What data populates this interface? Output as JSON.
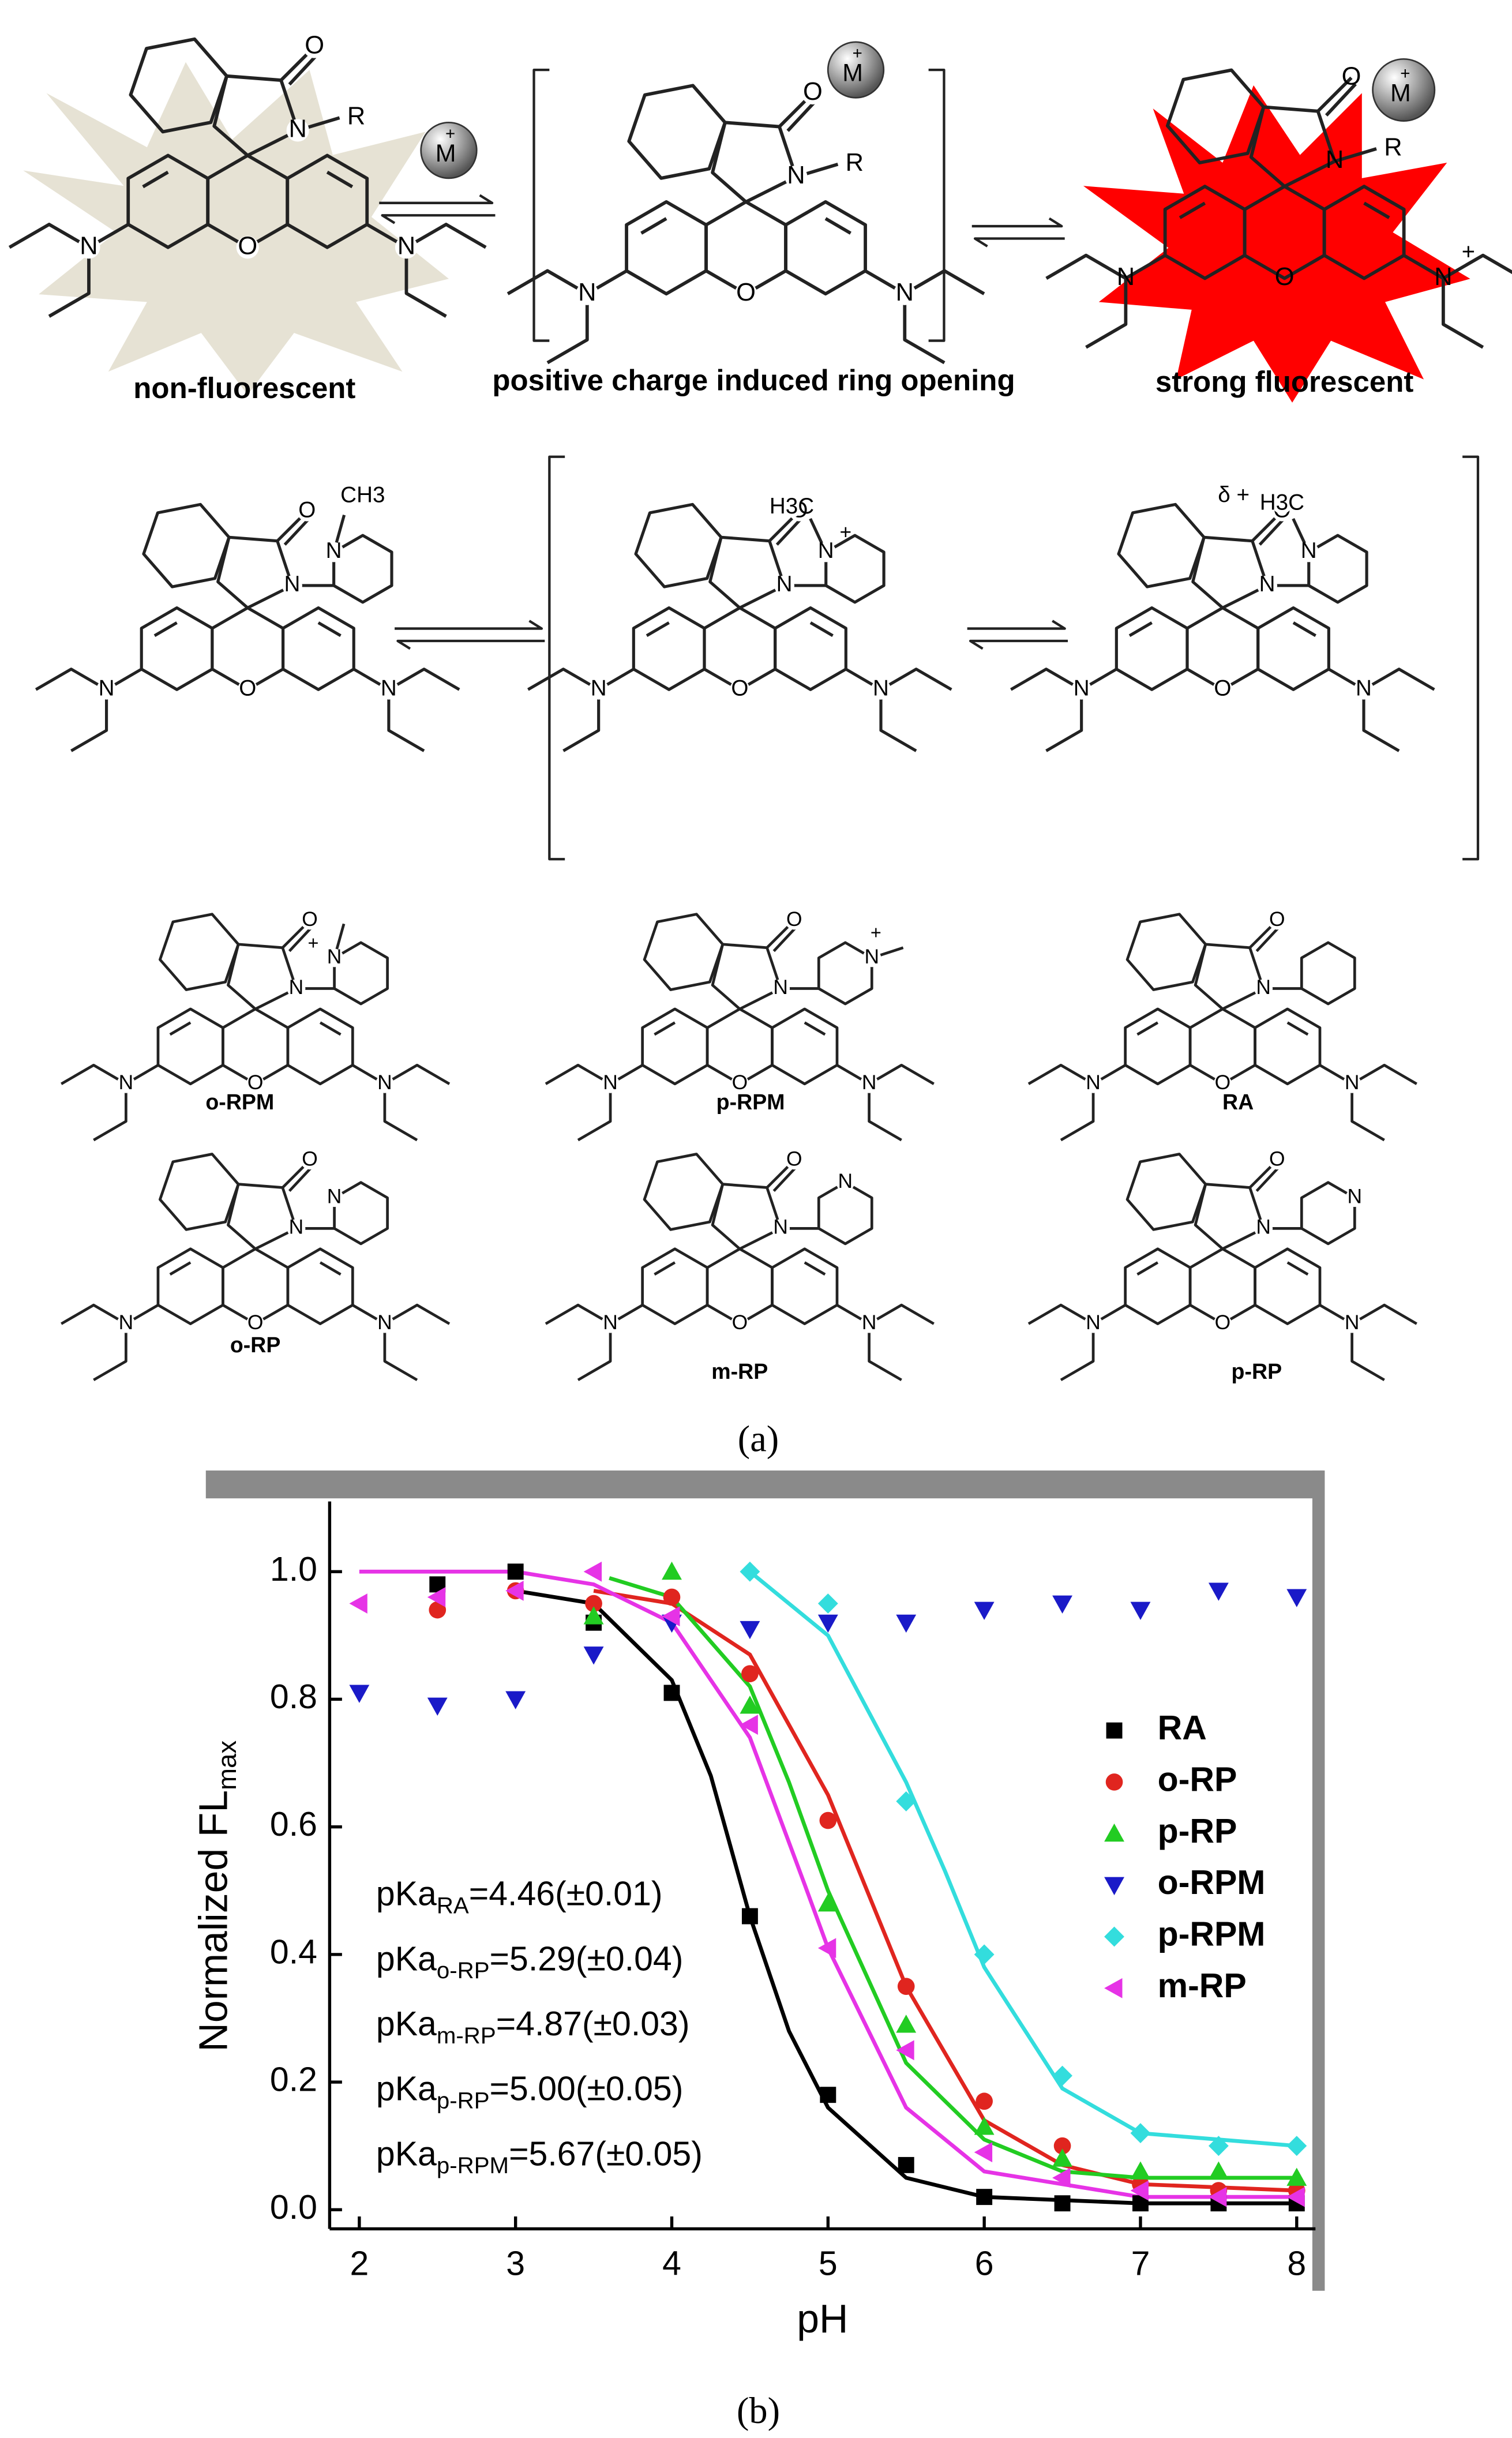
{
  "scheme": {
    "states": [
      "non-fluorescent",
      "positive charge induced ring opening",
      "strong fluorescent"
    ],
    "metal": {
      "symbol": "M",
      "charge": "+"
    },
    "molecules": [
      {
        "atoms": [
          "O",
          "N",
          "N",
          "N",
          "O"
        ],
        "extras": [
          "R"
        ]
      },
      {
        "atoms": [
          "O",
          "N",
          "N",
          "N",
          "O"
        ],
        "extras": [
          "R"
        ]
      },
      {
        "atoms": [
          "O",
          "N",
          "N",
          "N",
          "O"
        ],
        "extras": [
          "R",
          "+"
        ]
      },
      {
        "atoms": [
          "O",
          "N",
          "N",
          "N",
          "O"
        ],
        "extras": [
          "CH3",
          "N"
        ]
      },
      {
        "atoms": [
          "O",
          "N",
          "N",
          "N",
          "O"
        ],
        "extras": [
          "H3C",
          "N",
          "+"
        ]
      },
      {
        "atoms": [
          "O",
          "N",
          "N",
          "N",
          "O"
        ],
        "extras": [
          "δ +",
          "H3C",
          "N"
        ]
      },
      {
        "atoms": [
          "O",
          "N",
          "N",
          "N",
          "O"
        ],
        "extras": [
          "+",
          "N"
        ]
      },
      {
        "atoms": [
          "O",
          "N",
          "N",
          "N",
          "O"
        ],
        "extras": [
          "N",
          "+"
        ]
      },
      {
        "atoms": [
          "O",
          "N",
          "N",
          "N",
          "O"
        ],
        "extras": []
      },
      {
        "atoms": [
          "O",
          "N",
          "N",
          "N",
          "O"
        ],
        "extras": [
          "N"
        ]
      },
      {
        "atoms": [
          "O",
          "N",
          "N",
          "N",
          "O"
        ],
        "extras": [
          "N"
        ]
      },
      {
        "atoms": [
          "O",
          "N",
          "N",
          "N",
          "O"
        ],
        "extras": [
          "N"
        ]
      }
    ],
    "compounds": [
      "o-RPM",
      "p-RPM",
      "RA",
      "o-RP",
      "m-RP",
      "p-RP"
    ],
    "panel_label": "(a)"
  },
  "chart_data": {
    "type": "scatter",
    "panel_label": "(b)",
    "x_label": "pH",
    "y_label": {
      "text": "Normalized FL",
      "sub": "max"
    },
    "xlim": [
      1.81,
      8.12
    ],
    "ylim": [
      -0.03,
      1.11
    ],
    "xticks": [
      2,
      3,
      4,
      5,
      6,
      7,
      8
    ],
    "yticks": [
      {
        "value": 0,
        "label": "0.0"
      },
      {
        "value": 0.2,
        "label": "0.2"
      },
      {
        "value": 0.4,
        "label": "0.4"
      },
      {
        "value": 0.6,
        "label": "0.6"
      },
      {
        "value": 0.8,
        "label": "0.8"
      },
      {
        "value": 1,
        "label": "1.0"
      }
    ],
    "series": [
      {
        "name": "RA",
        "color": "#000000",
        "marker": "square",
        "x": [
          2.5,
          3,
          3.5,
          4,
          4.5,
          5,
          5.5,
          6,
          6.5,
          7,
          7.5,
          8
        ],
        "values": [
          0.98,
          1.0,
          0.92,
          0.81,
          0.46,
          0.18,
          0.07,
          0.02,
          0.01,
          0.01,
          0.01,
          0.01
        ]
      },
      {
        "name": "o-RP",
        "color": "#e0251f",
        "marker": "circle",
        "x": [
          2.5,
          3,
          3.5,
          4,
          4.5,
          5,
          5.5,
          6,
          6.5,
          7,
          7.5,
          8
        ],
        "values": [
          0.94,
          0.97,
          0.95,
          0.96,
          0.84,
          0.61,
          0.35,
          0.17,
          0.1,
          0.04,
          0.03,
          0.03
        ]
      },
      {
        "name": "p-RP",
        "color": "#22cc22",
        "marker": "triangle-up",
        "x": [
          3.5,
          4,
          4.5,
          5,
          5.5,
          6,
          6.5,
          7,
          7.5,
          8
        ],
        "values": [
          0.93,
          1.0,
          0.79,
          0.48,
          0.29,
          0.13,
          0.08,
          0.06,
          0.06,
          0.05
        ]
      },
      {
        "name": "o-RPM",
        "color": "#1a1ac8",
        "marker": "triangle-down",
        "x": [
          2,
          2.5,
          3,
          3.5,
          4,
          4.5,
          5,
          5.5,
          6,
          6.5,
          7,
          7.5,
          8
        ],
        "values": [
          0.81,
          0.79,
          0.8,
          0.87,
          0.92,
          0.91,
          0.92,
          0.92,
          0.94,
          0.95,
          0.94,
          0.97,
          0.96
        ]
      },
      {
        "name": "p-RPM",
        "color": "#33dddd",
        "marker": "diamond",
        "x": [
          4.5,
          5,
          5.5,
          6,
          6.5,
          7,
          7.5,
          8
        ],
        "values": [
          1.0,
          0.95,
          0.64,
          0.4,
          0.21,
          0.12,
          0.1,
          0.1
        ]
      },
      {
        "name": "m-RP",
        "color": "#e633e6",
        "marker": "triangle-left",
        "x": [
          2,
          2.5,
          3,
          3.5,
          4,
          4.5,
          5,
          5.5,
          6,
          6.5,
          7,
          7.5,
          8
        ],
        "values": [
          0.95,
          0.96,
          0.97,
          1.0,
          0.93,
          0.76,
          0.41,
          0.25,
          0.09,
          0.05,
          0.03,
          0.02,
          0.02
        ]
      }
    ],
    "fits": [
      {
        "color": "#000000",
        "x": [
          3,
          3.5,
          4,
          4.25,
          4.5,
          4.75,
          5,
          5.5,
          6,
          7,
          8
        ],
        "values": [
          0.97,
          0.95,
          0.83,
          0.68,
          0.46,
          0.28,
          0.16,
          0.05,
          0.02,
          0.01,
          0.01
        ]
      },
      {
        "color": "#e0251f",
        "x": [
          3.5,
          4,
          4.5,
          5,
          5.25,
          5.5,
          6,
          6.5,
          7,
          8
        ],
        "values": [
          0.97,
          0.95,
          0.87,
          0.65,
          0.5,
          0.35,
          0.14,
          0.07,
          0.04,
          0.03
        ]
      },
      {
        "color": "#22cc22",
        "x": [
          3.6,
          4,
          4.5,
          4.75,
          5,
          5.5,
          6,
          6.5,
          7,
          8
        ],
        "values": [
          0.99,
          0.96,
          0.82,
          0.67,
          0.5,
          0.23,
          0.11,
          0.06,
          0.05,
          0.05
        ]
      },
      {
        "color": "#33dddd",
        "x": [
          4.5,
          5,
          5.5,
          5.75,
          6,
          6.5,
          7,
          7.5,
          8
        ],
        "values": [
          1.0,
          0.9,
          0.67,
          0.53,
          0.38,
          0.19,
          0.12,
          0.11,
          0.1
        ]
      },
      {
        "color": "#e633e6",
        "x": [
          2,
          3,
          3.5,
          4,
          4.5,
          4.85,
          5,
          5.5,
          6,
          7,
          8
        ],
        "values": [
          1.0,
          1.0,
          0.98,
          0.92,
          0.74,
          0.51,
          0.41,
          0.16,
          0.06,
          0.02,
          0.02
        ]
      }
    ],
    "annotations": [
      {
        "text": "pKa",
        "sub": "RA",
        "value": "=4.46(±0.01)"
      },
      {
        "text": "pKa",
        "sub": "o-RP",
        "value": "=5.29(±0.04)"
      },
      {
        "text": "pKa",
        "sub": "m-RP",
        "value": "=4.87(±0.03)"
      },
      {
        "text": "pKa",
        "sub": "p-RP",
        "value": "=5.00(±0.05)"
      },
      {
        "text": "pKa",
        "sub": "p-RPM",
        "value": "=5.67(±0.05)"
      }
    ]
  }
}
